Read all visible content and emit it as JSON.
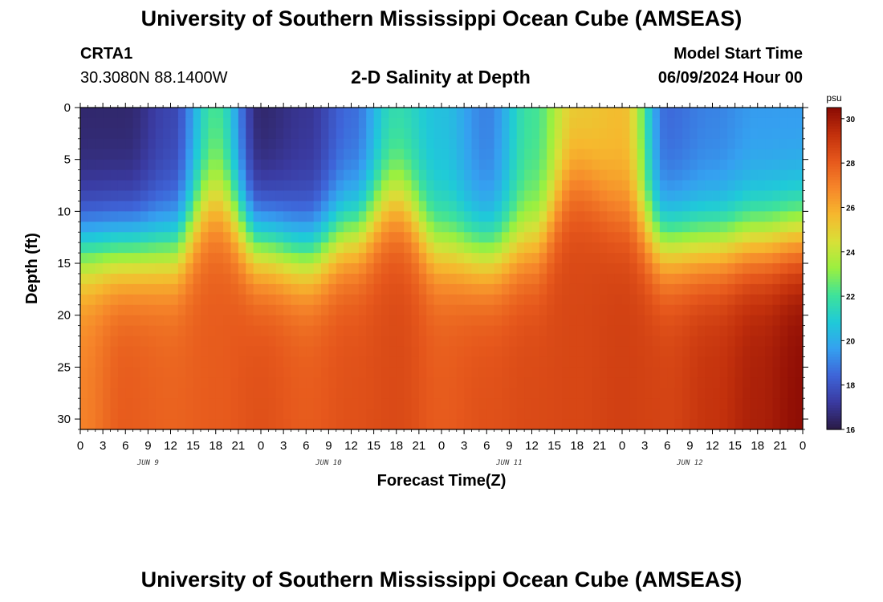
{
  "header": {
    "title": "University of Southern Mississippi Ocean Cube (AMSEAS)",
    "station": "CRTA1",
    "coords": "30.3080N  88.1400W",
    "plot_title": "2-D Salinity at Depth",
    "start_label": "Model Start Time",
    "start_value": "06/09/2024 Hour 00"
  },
  "footer": {
    "title": "University of Southern Mississippi Ocean Cube (AMSEAS)"
  },
  "chart_data": {
    "type": "heatmap",
    "title": "2-D Salinity at Depth",
    "xlabel": "Forecast Time(Z)",
    "ylabel": "Depth (ft)",
    "x_ticks": [
      "0",
      "3",
      "6",
      "9",
      "12",
      "15",
      "18",
      "21",
      "0",
      "3",
      "6",
      "9",
      "12",
      "15",
      "18",
      "21",
      "0",
      "3",
      "6",
      "9",
      "12",
      "15",
      "18",
      "21",
      "0",
      "3",
      "6",
      "9",
      "12",
      "15",
      "18",
      "21",
      "0"
    ],
    "date_labels": [
      "JUN 9",
      "JUN 10",
      "JUN 11",
      "JUN 12"
    ],
    "x_range_hours": [
      0,
      96
    ],
    "y_ticks": [
      "0",
      "5",
      "10",
      "15",
      "20",
      "25",
      "30"
    ],
    "ylim": [
      0,
      31
    ],
    "colorbar": {
      "unit": "psu",
      "range": [
        16,
        30.5
      ],
      "ticks": [
        "16",
        "18",
        "20",
        "22",
        "24",
        "26",
        "28",
        "30"
      ]
    },
    "colors": {
      "ramp": [
        "#2a1a45",
        "#3a3aa0",
        "#3e64d8",
        "#35a0f0",
        "#1fcad8",
        "#3ee29a",
        "#9af040",
        "#d8e038",
        "#f6b82e",
        "#f6862a",
        "#e6581c",
        "#c2300c",
        "#8a0a04"
      ]
    },
    "halocline_hours": [
      0,
      6,
      12,
      18,
      24,
      30,
      36,
      42,
      48,
      54,
      60,
      66,
      72,
      78,
      84,
      90,
      96
    ],
    "halocline_depth_ft": [
      13.5,
      13.5,
      13.5,
      9.0,
      13.0,
      14.0,
      12.0,
      9.0,
      13.5,
      14.0,
      13.0,
      7.0,
      10.0,
      13.0,
      13.0,
      12.5,
      12.0
    ],
    "surface_salinity_psu": [
      16.5,
      16.5,
      17.5,
      22.0,
      16.5,
      17.0,
      18.5,
      21.5,
      20.5,
      19.0,
      22.0,
      25.0,
      25.5,
      18.5,
      19.0,
      19.5,
      19.5
    ],
    "deep_salinity_psu": [
      27.0,
      28.0,
      27.8,
      28.0,
      28.3,
      28.0,
      28.3,
      28.5,
      28.0,
      28.3,
      28.5,
      28.6,
      28.8,
      28.7,
      29.2,
      29.8,
      30.4
    ]
  }
}
